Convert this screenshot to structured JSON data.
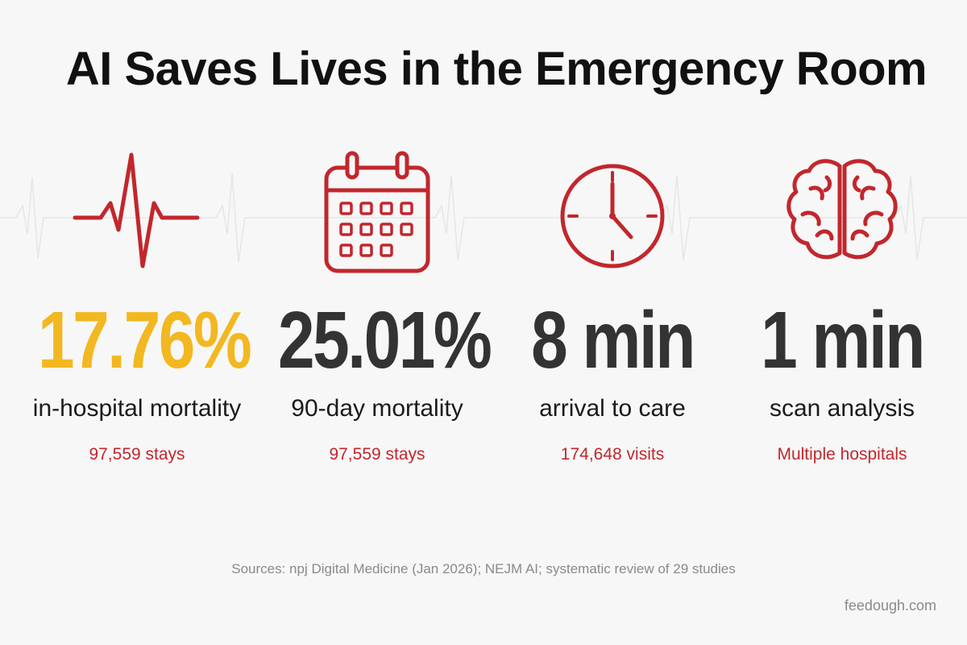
{
  "title": "AI Saves Lives in the Emergency Room",
  "colors": {
    "accent_red": "#c1272d",
    "highlight_yellow": "#f2b821",
    "dark_text": "#333333",
    "background": "#f7f7f7"
  },
  "stats": [
    {
      "icon": "heartbeat-icon",
      "value": "17.76%",
      "label": "in-hospital mortality",
      "sub": "97,559 stays",
      "value_color": "#f2b821"
    },
    {
      "icon": "calendar-icon",
      "value": "25.01%",
      "label": "90-day mortality",
      "sub": "97,559 stays",
      "value_color": "#333333"
    },
    {
      "icon": "clock-icon",
      "value": "8 min",
      "label": "arrival to care",
      "sub": "174,648 visits",
      "value_color": "#333333"
    },
    {
      "icon": "brain-icon",
      "value": "1 min",
      "label": "scan analysis",
      "sub": "Multiple hospitals",
      "value_color": "#333333"
    }
  ],
  "sources": "Sources: npj Digital Medicine (Jan 2026); NEJM AI; systematic review of 29 studies",
  "brand": "feedough.com"
}
